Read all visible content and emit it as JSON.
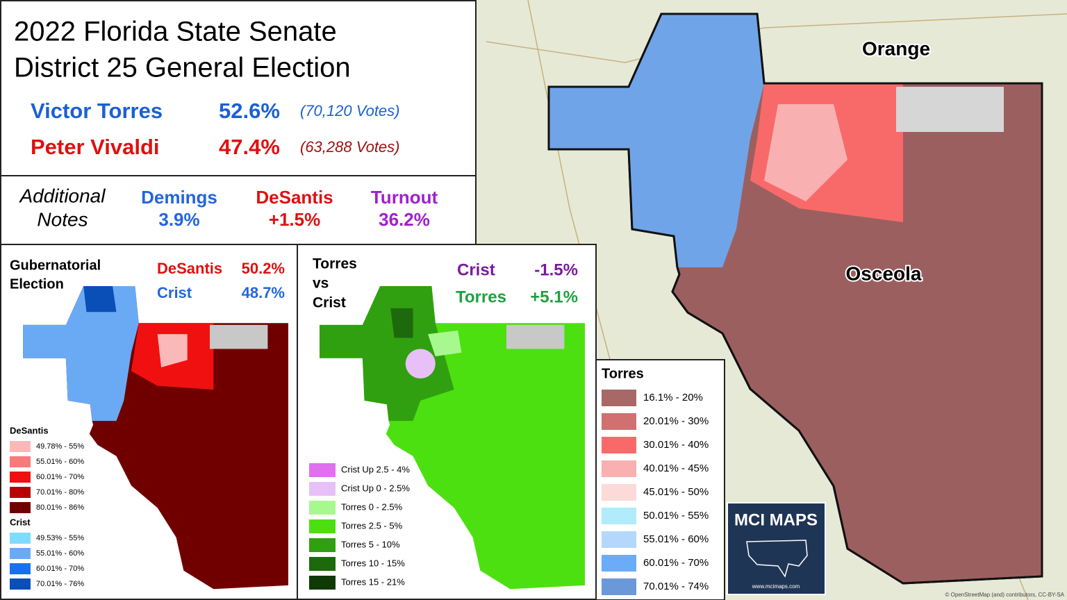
{
  "header": {
    "title_lines": [
      "2022 Florida State Senate",
      "District 25 General Election"
    ]
  },
  "candidates": [
    {
      "name": "Victor Torres",
      "share": "52.6%",
      "votes": "(70,120 Votes)",
      "color": "#1a5fd6"
    },
    {
      "name": "Peter Vivaldi",
      "share": "47.4%",
      "votes": "(63,288 Votes)",
      "color": "#e01010"
    }
  ],
  "notes": {
    "label_lines": [
      "Additional",
      "Notes"
    ],
    "items": [
      {
        "name": "Demings",
        "value": "3.9%",
        "color": "#2266dd"
      },
      {
        "name": "DeSantis",
        "value": "+1.5%",
        "color": "#e01010"
      },
      {
        "name": "Turnout",
        "value": "36.2%",
        "color": "#a020d0"
      }
    ]
  },
  "gubernatorial": {
    "title_lines": [
      "Gubernatorial",
      "Election"
    ],
    "results": [
      {
        "name": "DeSantis",
        "value": "50.2%",
        "color": "#e01010"
      },
      {
        "name": "Crist",
        "value": "48.7%",
        "color": "#2266dd"
      }
    ],
    "legend": [
      {
        "title": "DeSantis",
        "items": [
          {
            "label": "49.78% - 55%",
            "color": "#fbb8b8"
          },
          {
            "label": "55.01% - 60%",
            "color": "#f87a7a"
          },
          {
            "label": "60.01% - 70%",
            "color": "#f01010"
          },
          {
            "label": "70.01% - 80%",
            "color": "#b80000"
          },
          {
            "label": "80.01% - 86%",
            "color": "#700000"
          }
        ]
      },
      {
        "title": "Crist",
        "items": [
          {
            "label": "49.53% - 55%",
            "color": "#7fdcff"
          },
          {
            "label": "55.01% - 60%",
            "color": "#6aaaf5"
          },
          {
            "label": "60.01% - 70%",
            "color": "#1a6ef0"
          },
          {
            "label": "70.01% - 76%",
            "color": "#0a4fb8"
          }
        ]
      }
    ]
  },
  "comparison": {
    "title_lines": [
      "Torres",
      "vs",
      "Crist"
    ],
    "results": [
      {
        "name": "Crist",
        "value": "-1.5%",
        "color": "#7a1aa0"
      },
      {
        "name": "Torres",
        "value": "+5.1%",
        "color": "#20a040"
      }
    ],
    "legend": [
      {
        "label": "Crist Up 2.5 - 4%",
        "color": "#e070f0"
      },
      {
        "label": "Crist Up 0 - 2.5%",
        "color": "#e8c0f8"
      },
      {
        "label": "Torres 0 - 2.5%",
        "color": "#a8f890"
      },
      {
        "label": "Torres 2.5 - 5%",
        "color": "#4ce010"
      },
      {
        "label": "Torres 5 - 10%",
        "color": "#30a010"
      },
      {
        "label": "Torres 10 - 15%",
        "color": "#1c6a0c"
      },
      {
        "label": "Torres 15 - 21%",
        "color": "#0e3a06"
      }
    ]
  },
  "main_map": {
    "labels": [
      "Orange",
      "Osceola"
    ],
    "legend": {
      "title": "Torres",
      "items": [
        {
          "label": "16.1% - 20%",
          "color": "#a86868"
        },
        {
          "label": "20.01% - 30%",
          "color": "#d07070"
        },
        {
          "label": "30.01% - 40%",
          "color": "#f86a6a"
        },
        {
          "label": "40.01% - 45%",
          "color": "#f8b0b0"
        },
        {
          "label": "45.01% - 50%",
          "color": "#fcdada"
        },
        {
          "label": "50.01% - 55%",
          "color": "#b0ecfc"
        },
        {
          "label": "55.01% - 60%",
          "color": "#b4d8fc"
        },
        {
          "label": "60.01% - 70%",
          "color": "#6aacf8"
        },
        {
          "label": "70.01% - 74%",
          "color": "#6a98d8"
        }
      ]
    },
    "logo": {
      "title": "MCI MAPS",
      "url": "www.mcimaps.com"
    },
    "attribution": "© OpenStreetMap (and) contributors, CC-BY-SA"
  }
}
